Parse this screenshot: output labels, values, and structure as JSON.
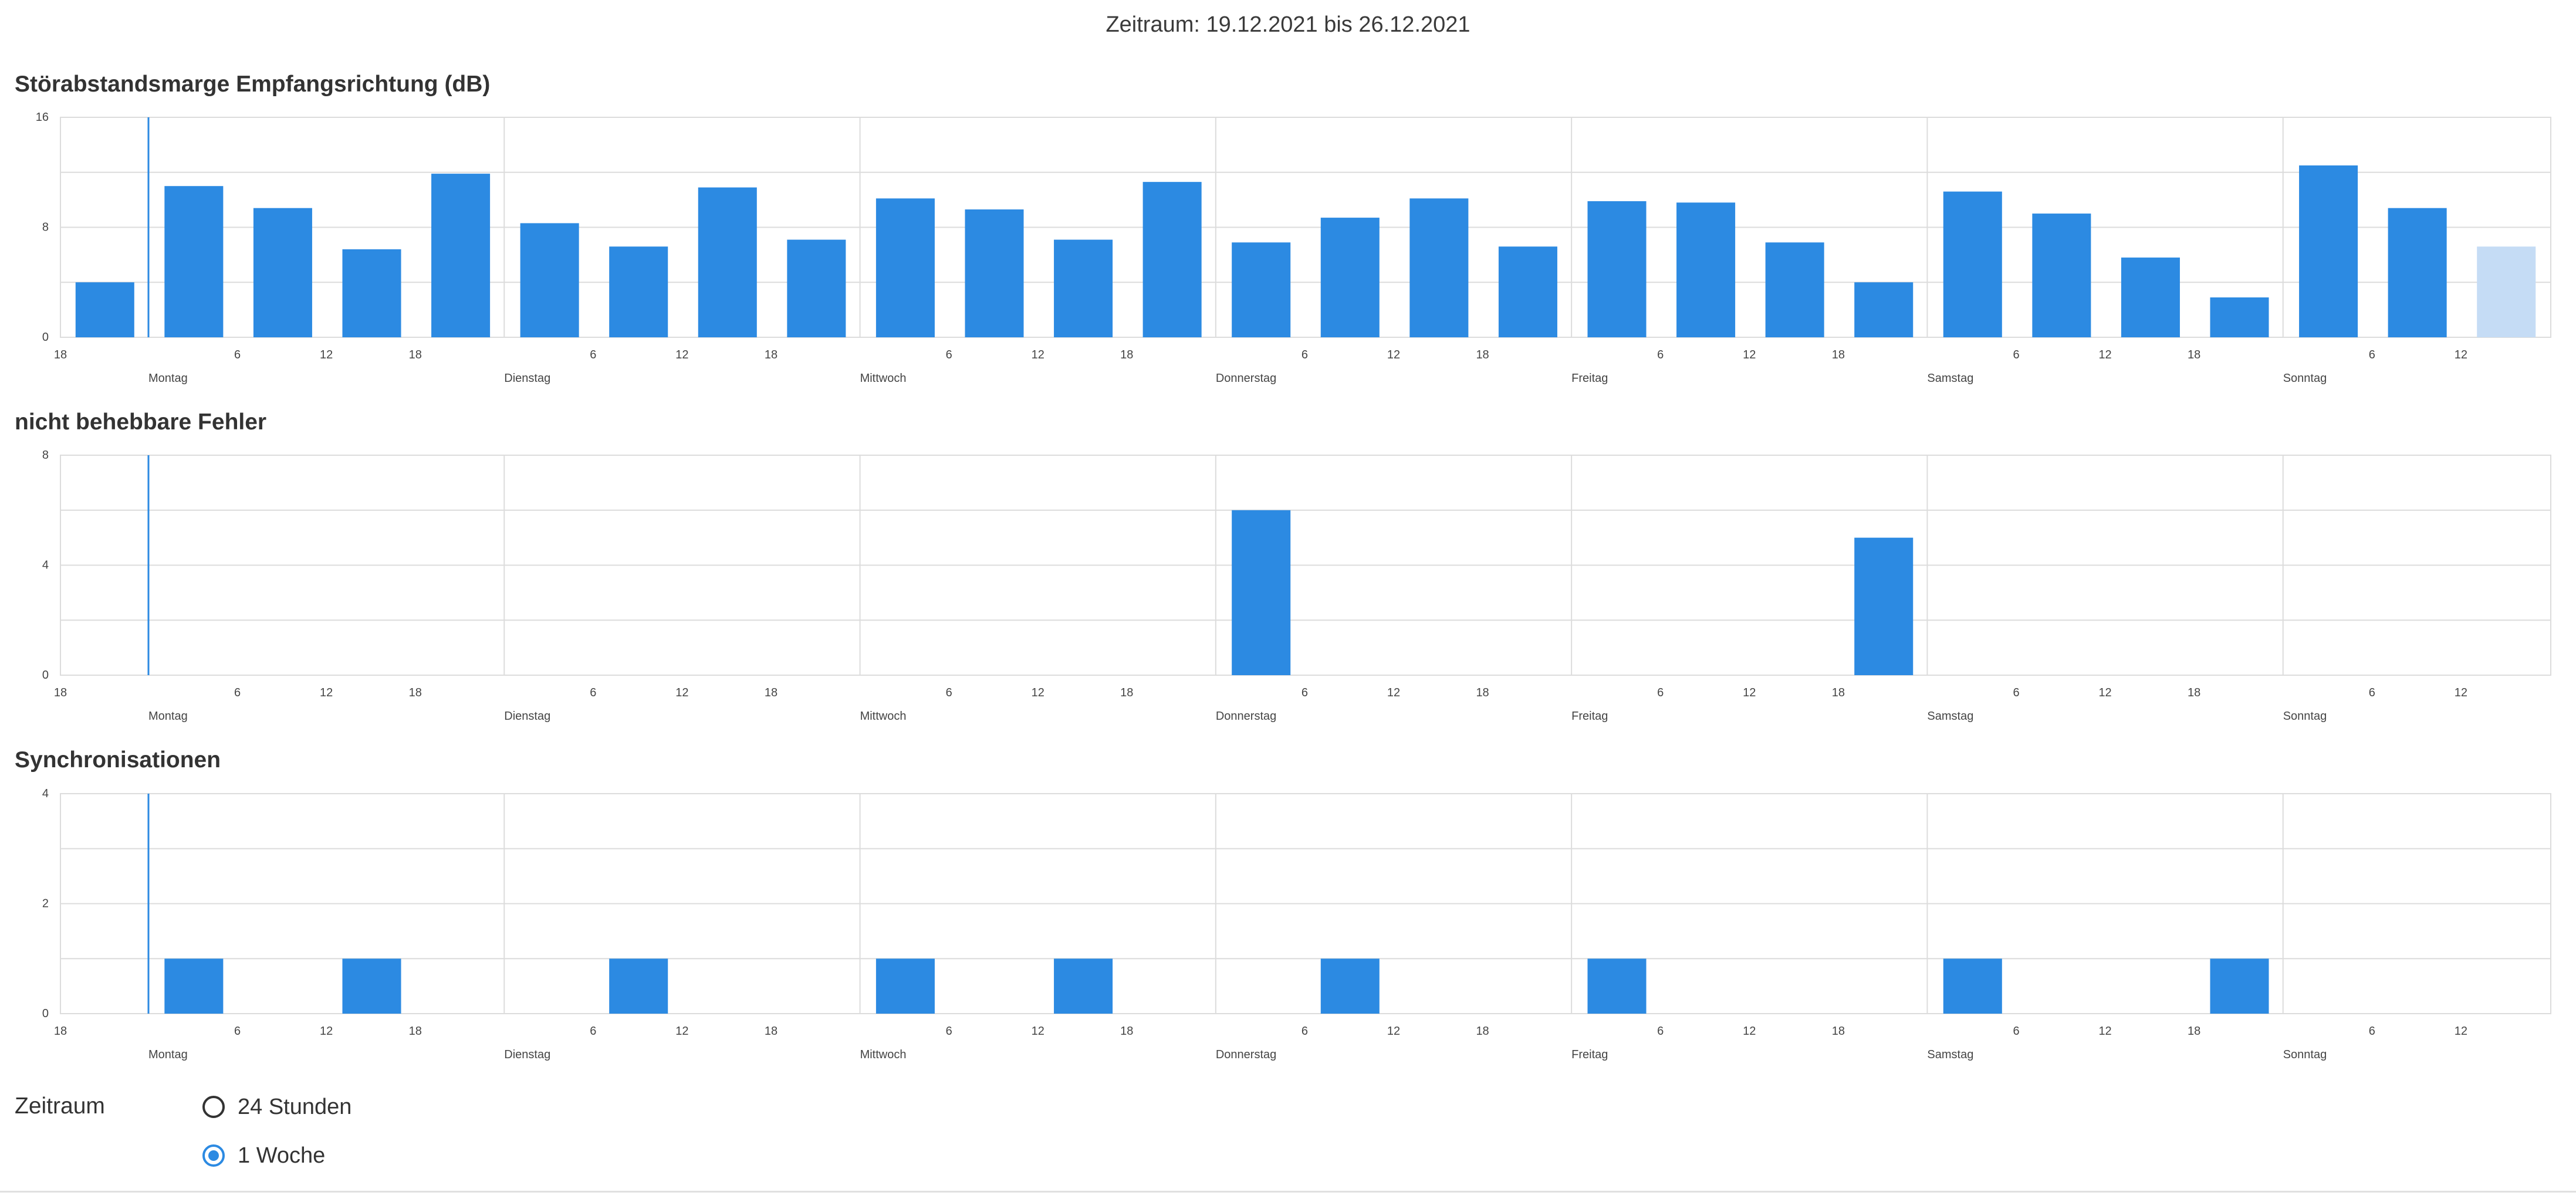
{
  "header": {
    "range_title": "Zeitraum: 19.12.2021 bis 26.12.2021"
  },
  "days": [
    "Montag",
    "Dienstag",
    "Mittwoch",
    "Donnerstag",
    "Freitag",
    "Samstag",
    "Sonntag"
  ],
  "colors": {
    "bar": "#2c8ae2",
    "bar_pending": "#c5dcf5",
    "grid": "#dcdcdc",
    "now_line": "#2c8ae2"
  },
  "chart_data": [
    {
      "type": "bar",
      "title": "Störabstandsmarge Empfangsrichtung (dB)",
      "ylim": [
        0,
        16
      ],
      "y_ticks": [
        0,
        8,
        16
      ],
      "grid": true,
      "x_start": "Sonntag 18 Uhr",
      "x_ticks_hours": [
        "18",
        "6",
        "12",
        "18"
      ],
      "bin_hours": 6,
      "values": [
        4,
        11,
        9.4,
        6.4,
        11.9,
        8.3,
        6.6,
        10.9,
        7.1,
        10.1,
        9.3,
        7.1,
        11.3,
        6.9,
        8.7,
        10.1,
        6.6,
        9.9,
        9.8,
        6.9,
        4,
        10.6,
        9,
        5.8,
        2.9,
        12.5,
        9.4,
        6.6
      ],
      "pending_last": true
    },
    {
      "type": "bar",
      "title": "nicht behebbare Fehler",
      "ylim": [
        0,
        8
      ],
      "y_ticks": [
        0,
        4,
        8
      ],
      "grid": true,
      "x_start": "Sonntag 18 Uhr",
      "x_ticks_hours": [
        "18",
        "6",
        "12",
        "18"
      ],
      "bin_hours": 6,
      "values": [
        0,
        0,
        0,
        0,
        0,
        0,
        0,
        0,
        0,
        0,
        0,
        0,
        0,
        6,
        0,
        0,
        0,
        0,
        0,
        0,
        5,
        0,
        0,
        0,
        0,
        0,
        0,
        0
      ],
      "pending_last": false
    },
    {
      "type": "bar",
      "title": "Synchronisationen",
      "ylim": [
        0,
        4
      ],
      "y_ticks": [
        0,
        2,
        4
      ],
      "grid": true,
      "x_start": "Sonntag 18 Uhr",
      "x_ticks_hours": [
        "18",
        "6",
        "12",
        "18"
      ],
      "bin_hours": 6,
      "values": [
        0,
        1,
        0,
        1,
        0,
        0,
        1,
        0,
        0,
        1,
        0,
        1,
        0,
        0,
        1,
        0,
        0,
        1,
        0,
        0,
        0,
        1,
        0,
        0,
        1,
        0,
        0,
        0
      ],
      "pending_last": false
    }
  ],
  "controls": {
    "label": "Zeitraum",
    "options": [
      {
        "label": "24 Stunden",
        "selected": false
      },
      {
        "label": "1 Woche",
        "selected": true
      }
    ]
  }
}
